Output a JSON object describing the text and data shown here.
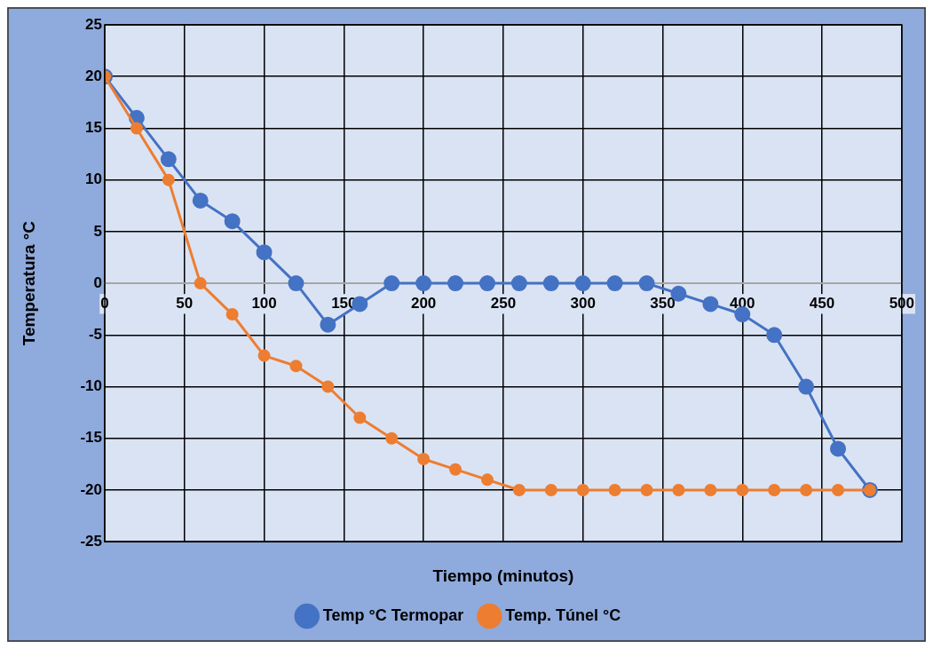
{
  "chart_data": {
    "type": "line",
    "xlabel": "Tiempo (minutos)",
    "ylabel": "Temperatura °C",
    "xlim": [
      0,
      500
    ],
    "xticks": [
      0,
      50,
      100,
      150,
      200,
      250,
      300,
      350,
      400,
      450,
      500
    ],
    "ylim": [
      -25,
      25
    ],
    "yticks": [
      -25,
      -20,
      -15,
      -10,
      -5,
      0,
      5,
      10,
      15,
      20,
      25
    ],
    "grid": true,
    "legend": "bottom",
    "marker": "circle",
    "line_style": "solid",
    "series": [
      {
        "name": "Temp °C Termopar",
        "color": "#4472c4",
        "x": [
          0,
          20,
          40,
          60,
          80,
          100,
          120,
          140,
          160,
          180,
          200,
          220,
          240,
          260,
          280,
          300,
          320,
          340,
          360,
          380,
          400,
          420,
          440,
          460,
          480
        ],
        "values": [
          20,
          16,
          12,
          8,
          6,
          3,
          0,
          -4,
          -2,
          0,
          0,
          0,
          0,
          0,
          0,
          0,
          0,
          0,
          -1,
          -2,
          -3,
          -5,
          -10,
          -16,
          -20
        ]
      },
      {
        "name": "Temp. Túnel °C",
        "color": "#ed7d31",
        "x": [
          0,
          20,
          40,
          60,
          80,
          100,
          120,
          140,
          160,
          180,
          200,
          220,
          240,
          260,
          280,
          300,
          320,
          340,
          360,
          380,
          400,
          420,
          440,
          460,
          480
        ],
        "values": [
          20,
          15,
          10,
          0,
          -3,
          -7,
          -8,
          -10,
          -13,
          -15,
          -17,
          -18,
          -19,
          -20,
          -20,
          -20,
          -20,
          -20,
          -20,
          -20,
          -20,
          -20,
          -20,
          -20,
          -20
        ]
      }
    ]
  }
}
